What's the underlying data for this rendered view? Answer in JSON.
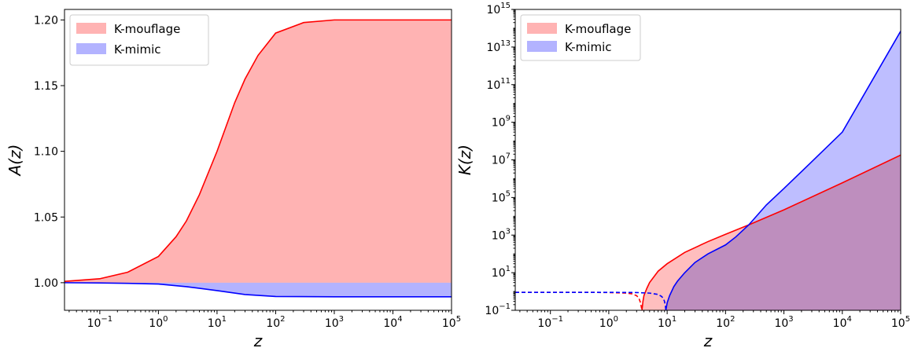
{
  "chart_data": [
    {
      "type": "area",
      "xlabel": "z",
      "ylabel": "A(z)",
      "xscale": "log",
      "xlim": [
        0.025,
        100000
      ],
      "ylim": [
        0.979,
        1.208
      ],
      "x_tick_values": [
        0.1,
        1,
        10,
        100,
        1000,
        10000,
        100000
      ],
      "x_tick_labels": [
        [
          "10",
          "−1"
        ],
        [
          "10",
          "0"
        ],
        [
          "10",
          "1"
        ],
        [
          "10",
          "2"
        ],
        [
          "10",
          "3"
        ],
        [
          "10",
          "4"
        ],
        [
          "10",
          "5"
        ]
      ],
      "y_tick_values": [
        1.0,
        1.05,
        1.1,
        1.15,
        1.2
      ],
      "y_tick_labels": [
        "1.00",
        "1.05",
        "1.10",
        "1.15",
        "1.20"
      ],
      "legend": {
        "position": "top-left",
        "entries": [
          "K-mouflage",
          "K-mimic"
        ]
      },
      "grid": false,
      "fill_baseline": 1.0,
      "series": [
        {
          "name": "K-mouflage",
          "color": "#ff0000",
          "fill": "#ffb3b3",
          "style": "solid",
          "x": [
            0.025,
            0.1,
            0.3,
            1,
            2,
            3,
            5,
            10,
            20,
            30,
            50,
            100,
            300,
            1000,
            10000,
            100000
          ],
          "y": [
            1.001,
            1.003,
            1.008,
            1.02,
            1.035,
            1.047,
            1.067,
            1.1,
            1.137,
            1.155,
            1.173,
            1.19,
            1.198,
            1.2,
            1.2,
            1.2
          ]
        },
        {
          "name": "K-mimic",
          "color": "#0000ff",
          "fill": "#b3b3ff",
          "style": "solid",
          "x": [
            0.025,
            0.1,
            0.3,
            1,
            3,
            10,
            30,
            100,
            1000,
            100000
          ],
          "y": [
            1.0,
            0.9998,
            0.9995,
            0.999,
            0.997,
            0.994,
            0.991,
            0.9895,
            0.9893,
            0.9893
          ]
        }
      ]
    },
    {
      "type": "area",
      "xlabel": "z",
      "ylabel": "K(z)",
      "xscale": "log",
      "yscale": "log",
      "xlim": [
        0.025,
        100000
      ],
      "ylim": [
        0.1,
        1000000000000000.0
      ],
      "x_tick_values": [
        0.1,
        1,
        10,
        100,
        1000,
        10000,
        100000
      ],
      "x_tick_labels": [
        [
          "10",
          "−1"
        ],
        [
          "10",
          "0"
        ],
        [
          "10",
          "1"
        ],
        [
          "10",
          "2"
        ],
        [
          "10",
          "3"
        ],
        [
          "10",
          "4"
        ],
        [
          "10",
          "5"
        ]
      ],
      "y_tick_values": [
        0.1,
        10,
        1000,
        100000,
        10000000,
        1000000000,
        100000000000,
        10000000000000,
        1000000000000000.0
      ],
      "y_tick_labels": [
        [
          "10",
          "−1"
        ],
        [
          "10",
          "1"
        ],
        [
          "10",
          "3"
        ],
        [
          "10",
          "5"
        ],
        [
          "10",
          "7"
        ],
        [
          "10",
          "9"
        ],
        [
          "10",
          "11"
        ],
        [
          "10",
          "13"
        ],
        [
          "10",
          "15"
        ]
      ],
      "legend": {
        "position": "top-left",
        "entries": [
          "K-mouflage",
          "K-mimic"
        ]
      },
      "grid": false,
      "fill_baseline": 0.1,
      "series": [
        {
          "name": "K-mouflage",
          "color": "#ff0000",
          "fill": "#ffb3b3",
          "style": "solid",
          "x": [
            3.7,
            3.85,
            4.0,
            4.5,
            5,
            7,
            10,
            20,
            50,
            100,
            250,
            1000,
            10000,
            100000
          ],
          "y": [
            0.1,
            0.3,
            0.6,
            1.5,
            3,
            12,
            30,
            120,
            450,
            1100,
            3500,
            22000,
            600000,
            18000000
          ]
        },
        {
          "name": "K-mouflage-dashed",
          "color": "#ff0000",
          "style": "dashed",
          "x": [
            0.025,
            0.5,
            1,
            2,
            2.5,
            3,
            3.3,
            3.5,
            3.7
          ],
          "y": [
            0.9,
            0.9,
            0.88,
            0.82,
            0.75,
            0.6,
            0.42,
            0.25,
            0.1
          ]
        },
        {
          "name": "K-mimic",
          "color": "#0000ff",
          "fill": "#b3b3ff",
          "style": "solid",
          "x": [
            9.5,
            10,
            11,
            13,
            15,
            20,
            30,
            50,
            100,
            150,
            250,
            500,
            1000,
            3000,
            10000,
            100000
          ],
          "y": [
            0.1,
            0.25,
            0.6,
            1.8,
            3.5,
            10,
            35,
            100,
            300,
            800,
            3500,
            40000,
            300000,
            8000000,
            300000000,
            70000000000000.0
          ]
        },
        {
          "name": "K-mimic-dashed",
          "color": "#0000ff",
          "style": "dashed",
          "x": [
            0.025,
            1,
            3,
            5,
            7,
            8,
            8.5,
            9,
            9.3,
            9.5
          ],
          "y": [
            0.9,
            0.9,
            0.88,
            0.82,
            0.7,
            0.55,
            0.45,
            0.3,
            0.18,
            0.1
          ]
        }
      ]
    }
  ]
}
